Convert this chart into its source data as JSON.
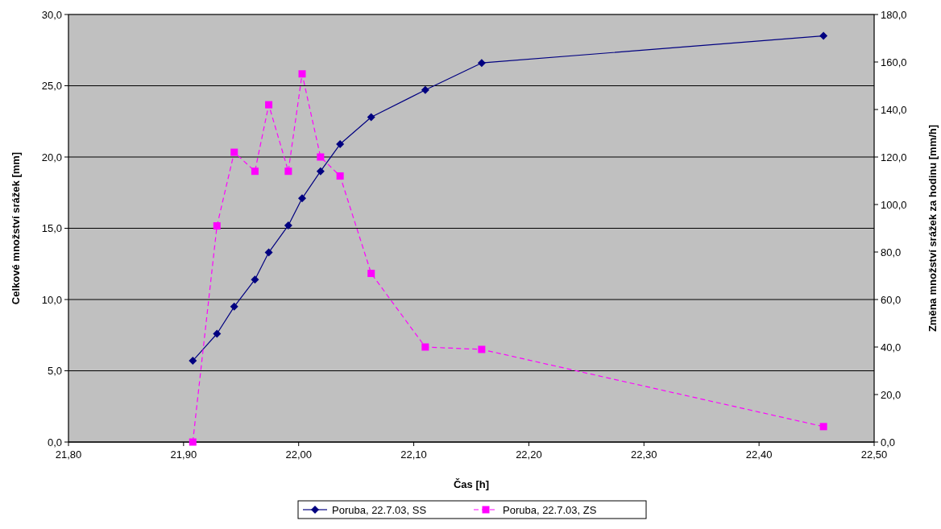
{
  "chart_data": {
    "type": "line",
    "xlabel": "Čas [h]",
    "ylabel": "Celkové množství srážek [mm]",
    "y2label": "Změna množství srážek za hodinu [mm/h]",
    "xlim": [
      21.8,
      22.5
    ],
    "xticks": [
      {
        "value": 21.8,
        "label": "21,80"
      },
      {
        "value": 21.9,
        "label": "21,90"
      },
      {
        "value": 22.0,
        "label": "22,00"
      },
      {
        "value": 22.1,
        "label": "22,10"
      },
      {
        "value": 22.2,
        "label": "22,20"
      },
      {
        "value": 22.3,
        "label": "22,30"
      },
      {
        "value": 22.4,
        "label": "22,40"
      },
      {
        "value": 22.5,
        "label": "22,50"
      }
    ],
    "ylim": [
      0,
      30
    ],
    "yticks": [
      {
        "value": 0,
        "label": "0,0"
      },
      {
        "value": 5,
        "label": "5,0"
      },
      {
        "value": 10,
        "label": "10,0"
      },
      {
        "value": 15,
        "label": "15,0"
      },
      {
        "value": 20,
        "label": "20,0"
      },
      {
        "value": 25,
        "label": "25,0"
      },
      {
        "value": 30,
        "label": "30,0"
      }
    ],
    "y2lim": [
      0,
      180
    ],
    "y2ticks": [
      {
        "value": 0,
        "label": "0,0"
      },
      {
        "value": 20,
        "label": "20,0"
      },
      {
        "value": 40,
        "label": "40,0"
      },
      {
        "value": 60,
        "label": "60,0"
      },
      {
        "value": 80,
        "label": "80,0"
      },
      {
        "value": 100,
        "label": "100,0"
      },
      {
        "value": 120,
        "label": "120,0"
      },
      {
        "value": 140,
        "label": "140,0"
      },
      {
        "value": 160,
        "label": "160,0"
      },
      {
        "value": 180,
        "label": "180,0"
      }
    ],
    "x": [
      21.908,
      21.929,
      21.944,
      21.962,
      21.974,
      21.991,
      22.003,
      22.019,
      22.036,
      22.063,
      22.11,
      22.159,
      22.456
    ],
    "series": [
      {
        "name": "Poruba, 22.7.03, SS",
        "color": "#000080",
        "marker": "diamond",
        "line_style": "solid",
        "values": [
          5.7,
          7.6,
          9.5,
          11.4,
          13.3,
          15.2,
          17.1,
          19.0,
          20.9,
          22.8,
          24.7,
          26.6,
          28.5
        ]
      },
      {
        "name": "Poruba, 22.7.03, ZS",
        "color": "#ff00ff",
        "marker": "square",
        "line_style": "dashed",
        "axis": "y2",
        "values": [
          0,
          91,
          122,
          114,
          142,
          114,
          155,
          120,
          112,
          71,
          40,
          39,
          6.5
        ]
      }
    ],
    "grid": "y",
    "legend": "bottom"
  }
}
